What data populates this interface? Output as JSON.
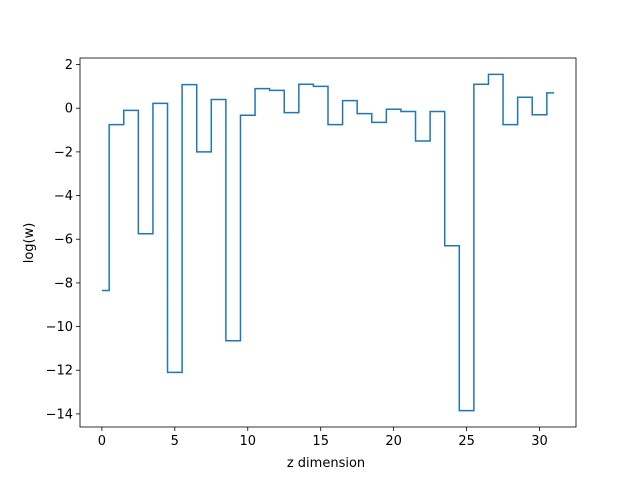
{
  "chart_data": {
    "type": "line",
    "drawstyle": "steps-mid",
    "xlabel": "z dimension",
    "ylabel": "log(w)",
    "xlim": [
      -1.5,
      32.5
    ],
    "ylim": [
      -14.6,
      2.3
    ],
    "xticks": [
      0,
      5,
      10,
      15,
      20,
      25,
      30
    ],
    "yticks": [
      2,
      0,
      -2,
      -4,
      -6,
      -8,
      -10,
      -12,
      -14
    ],
    "xtick_labels": [
      "0",
      "5",
      "10",
      "15",
      "20",
      "25",
      "30"
    ],
    "ytick_labels": [
      "2",
      "0",
      "−2",
      "−4",
      "−6",
      "−8",
      "−10",
      "−12",
      "−14"
    ],
    "grid": false,
    "line_color": "#1f77b4",
    "x": [
      0,
      1,
      2,
      3,
      4,
      5,
      6,
      7,
      8,
      9,
      10,
      11,
      12,
      13,
      14,
      15,
      16,
      17,
      18,
      19,
      20,
      21,
      22,
      23,
      24,
      25,
      26,
      27,
      28,
      29,
      30,
      31
    ],
    "y": [
      -8.35,
      -0.75,
      -0.1,
      -5.75,
      0.22,
      -12.1,
      1.08,
      -2.0,
      0.4,
      -10.65,
      -0.32,
      0.9,
      0.82,
      -0.2,
      1.1,
      1.0,
      -0.75,
      0.35,
      -0.25,
      -0.65,
      -0.05,
      -0.15,
      -1.5,
      -0.15,
      -6.3,
      -13.85,
      1.1,
      1.55,
      -0.75,
      0.5,
      -0.3,
      0.7
    ]
  }
}
